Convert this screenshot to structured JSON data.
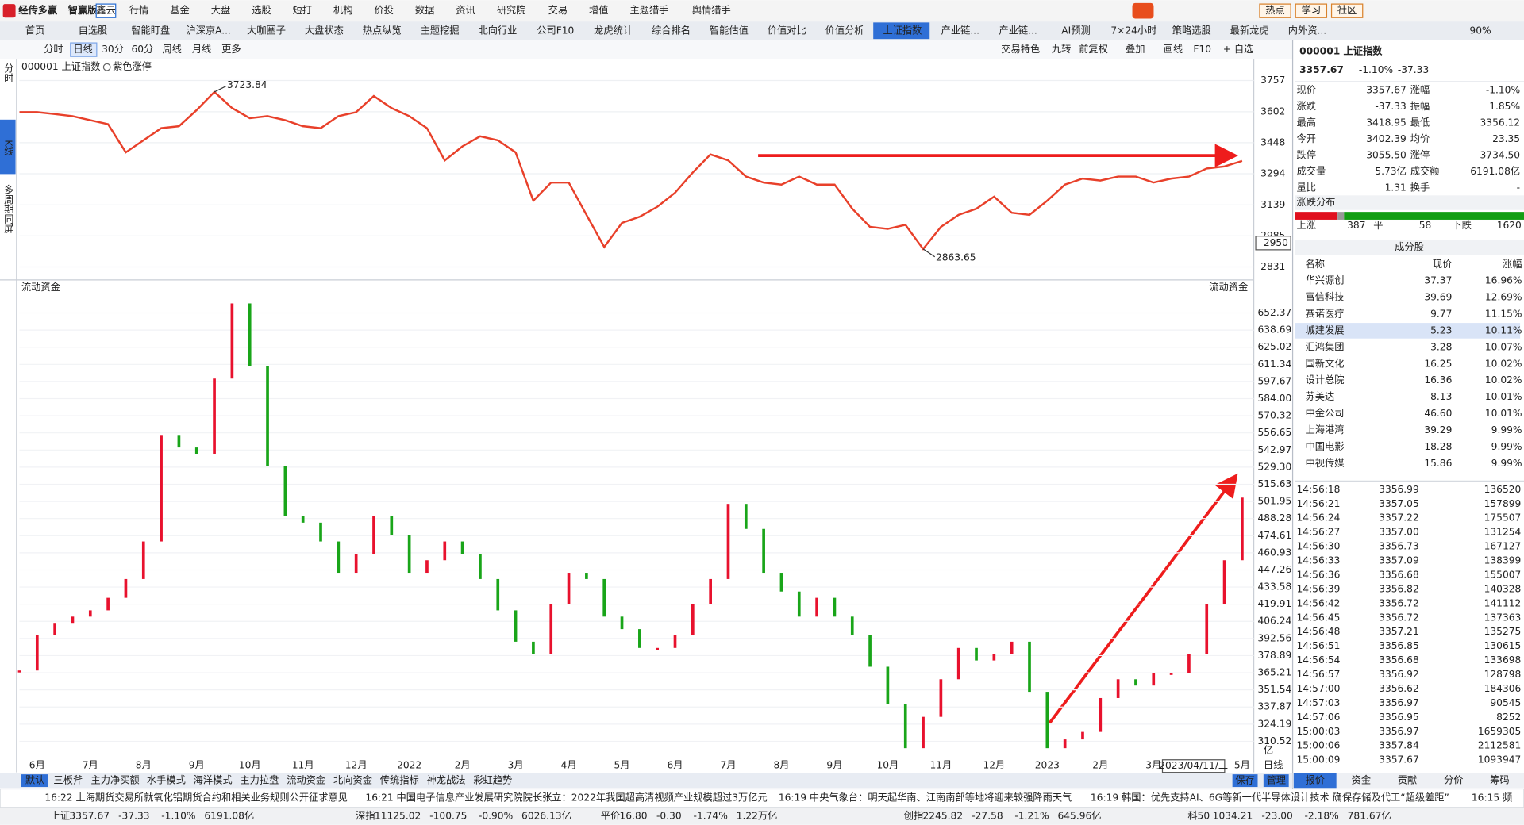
{
  "logo": "经传多赢",
  "edition": "智赢版",
  "badge": "鑫云",
  "menu": [
    "行情",
    "基金",
    "大盘",
    "选股",
    "短打",
    "机构",
    "价投",
    "数据",
    "资讯",
    "研究院",
    "交易",
    "增值",
    "主题猎手",
    "舆情猎手"
  ],
  "top_right": [
    "热点",
    "学习",
    "社区"
  ],
  "tabs": [
    "首页",
    "自选股",
    "智能盯盘",
    "沪深京A...",
    "大咖圈子",
    "大盘状态",
    "热点纵览",
    "主题挖掘",
    "北向行业",
    "公司F10",
    "龙虎统计",
    "综合排名",
    "智能估值",
    "价值对比",
    "价值分析",
    "上证指数",
    "产业链...",
    "产业链...",
    "AI预测",
    "7×24小时",
    "策略选股",
    "最新龙虎",
    "内外资..."
  ],
  "zoom": "90%",
  "toolbar_left": [
    "分时",
    "日线",
    "30分",
    "60分",
    "周线",
    "月线",
    "更多"
  ],
  "toolbar_right": [
    "交易特色",
    "九转",
    "前复权",
    "叠加",
    "画线",
    "F10",
    "+ 自选"
  ],
  "sidebar": [
    "分时",
    "K线",
    "多周期同屏"
  ],
  "chart_data": [
    {
      "type": "line",
      "title": "000001 上证指数",
      "subtitle": "紫色涨停",
      "color": "#e8402a",
      "categories": [
        null,
        "6月",
        null,
        null,
        "7月",
        null,
        null,
        "8月",
        null,
        null,
        "9月",
        null,
        null,
        "10月",
        null,
        null,
        "11月",
        null,
        null,
        "12月",
        null,
        null,
        "2022",
        null,
        null,
        "2月",
        null,
        null,
        "3月",
        null,
        null,
        "4月",
        null,
        null,
        "5月",
        null,
        null,
        "6月",
        null,
        null,
        "7月",
        null,
        null,
        "8月",
        null,
        null,
        "9月",
        null,
        null,
        "10月",
        null,
        null,
        "11月",
        null,
        null,
        "12月",
        null,
        null,
        "2023",
        null,
        null,
        "2月",
        null,
        null,
        "3月",
        null,
        null,
        null,
        null,
        "5月"
      ],
      "series": [
        {
          "color": "#e8402a",
          "values": [
            3600,
            3600,
            3590,
            3580,
            3560,
            3540,
            3400,
            3460,
            3520,
            3530,
            3610,
            3700,
            3620,
            3570,
            3580,
            3560,
            3530,
            3520,
            3580,
            3600,
            3680,
            3620,
            3580,
            3520,
            3360,
            3430,
            3480,
            3460,
            3400,
            3160,
            3250,
            3250,
            3090,
            2930,
            3050,
            3080,
            3130,
            3200,
            3300,
            3390,
            3360,
            3280,
            3250,
            3240,
            3280,
            3240,
            3240,
            3120,
            3030,
            3020,
            3040,
            2920,
            3030,
            3090,
            3120,
            3180,
            3100,
            3090,
            3160,
            3240,
            3270,
            3260,
            3280,
            3280,
            3250,
            3270,
            3280,
            3320,
            3330,
            3357.67
          ]
        }
      ],
      "annotations": [
        "3723.84",
        "2863.65"
      ],
      "cursor_value": 2950,
      "cursor_date": "2023/04/11/二",
      "period_label": "日线",
      "ylim": [
        2781,
        3857
      ],
      "yticks": [
        3757,
        3602,
        3448,
        3294,
        3139,
        2985,
        2831
      ]
    },
    {
      "type": "step",
      "title": "流动资金",
      "unit": "亿",
      "up_color": "#e8112d",
      "down_color": "#19a519",
      "series": [
        {
          "values": [
            367,
            395,
            405,
            410,
            415,
            425,
            440,
            470,
            555,
            545,
            540,
            600,
            660,
            610,
            530,
            490,
            485,
            470,
            445,
            460,
            490,
            475,
            445,
            455,
            470,
            460,
            440,
            415,
            390,
            380,
            420,
            445,
            440,
            410,
            400,
            385,
            385,
            395,
            420,
            440,
            500,
            480,
            445,
            430,
            410,
            425,
            410,
            395,
            370,
            340,
            305,
            330,
            360,
            385,
            375,
            380,
            390,
            350,
            305,
            312,
            318,
            345,
            360,
            355,
            365,
            365,
            380,
            420,
            455,
            505
          ]
        }
      ],
      "ylim": [
        297.3,
        677.2
      ],
      "yticks": [
        {
          "value": 652.37,
          "label": "652.37"
        },
        {
          "value": 638.69,
          "label": "638.69"
        },
        {
          "value": 625.02,
          "label": "625.02"
        },
        {
          "value": 611.34,
          "label": "611.34"
        },
        {
          "value": 597.67,
          "label": "597.67"
        },
        {
          "value": 584,
          "label": "584.00"
        },
        {
          "value": 570.32,
          "label": "570.32"
        },
        {
          "value": 556.65,
          "label": "556.65"
        },
        {
          "value": 542.97,
          "label": "542.97"
        },
        {
          "value": 529.3,
          "label": "529.30"
        },
        {
          "value": 515.63,
          "label": "515.63"
        },
        {
          "value": 501.95,
          "label": "501.95"
        },
        {
          "value": 488.28,
          "label": "488.28"
        },
        {
          "value": 474.61,
          "label": "474.61"
        },
        {
          "value": 460.93,
          "label": "460.93"
        },
        {
          "value": 447.26,
          "label": "447.26"
        },
        {
          "value": 433.58,
          "label": "433.58"
        },
        {
          "value": 419.91,
          "label": "419.91"
        },
        {
          "value": 406.24,
          "label": "406.24"
        },
        {
          "value": 392.56,
          "label": "392.56"
        },
        {
          "value": 378.89,
          "label": "378.89"
        },
        {
          "value": 365.21,
          "label": "365.21"
        },
        {
          "value": 351.54,
          "label": "351.54"
        },
        {
          "value": 337.87,
          "label": "337.87"
        },
        {
          "value": 324.19,
          "label": "324.19"
        },
        {
          "value": 310.52,
          "label": "310.52"
        }
      ]
    }
  ],
  "indicator_tabs": [
    "默认",
    "三板斧",
    "主力净买额",
    "水手模式",
    "海洋模式",
    "主力拉盘",
    "流动资金",
    "北向资金",
    "传统指标",
    "神龙战法",
    "彩虹趋势"
  ],
  "indicator_actions": [
    "保存",
    "管理"
  ],
  "news": [
    "16:22 上海期货交易所就氧化铝期货合约和相关业务规则公开征求意见",
    "16:21 中国电子信息产业发展研究院院长张立：2022年我国超高清视频产业规模超过3万亿元",
    "16:19 中央气象台：明天起华南、江南南部等地将迎来较强降雨天气",
    "16:19 韩国：优先支持AI、6G等新一代半导体设计技术 确保存储及代工“超级差距”",
    "16:15 频"
  ],
  "status": [
    [
      "上证",
      "3357.67",
      "-37.33",
      "-1.10%",
      "6191.08亿"
    ],
    [
      "深指",
      "11125.02",
      "-100.75",
      "-0.90%",
      "6026.13亿"
    ],
    [
      "平价",
      "16.80",
      "-0.30",
      "-1.74%",
      "1.22万亿"
    ],
    [
      "创指",
      "2245.82",
      "-27.58",
      "-1.21%",
      "645.96亿"
    ],
    [
      "科50",
      "1034.21",
      "-23.00",
      "-2.18%",
      "781.67亿"
    ]
  ],
  "panel": {
    "name": "000001 上证指数",
    "price": "3357.67",
    "change_pct": "-1.10%",
    "change": "-37.33",
    "quote": [
      [
        {
          "label": "现价",
          "value": "3357.67",
          "tone": "down"
        },
        {
          "label": "涨幅",
          "value": "-1.10%",
          "tone": "down"
        }
      ],
      [
        {
          "label": "涨跌",
          "value": "-37.33",
          "tone": "down"
        },
        {
          "label": "振幅",
          "value": "1.85%",
          "tone": "flat"
        }
      ],
      [
        {
          "label": "最高",
          "value": "3418.95",
          "tone": "up"
        },
        {
          "label": "最低",
          "value": "3356.12",
          "tone": "down"
        }
      ],
      [
        {
          "label": "今开",
          "value": "3402.39",
          "tone": "up"
        },
        {
          "label": "均价",
          "value": "23.35",
          "tone": "down"
        }
      ],
      [
        {
          "label": "跌停",
          "value": "3055.50",
          "tone": "down"
        },
        {
          "label": "涨停",
          "value": "3734.50",
          "tone": "up"
        }
      ],
      [
        {
          "label": "成交量",
          "value": "5.73亿",
          "tone": "flat"
        },
        {
          "label": "成交额",
          "value": "6191.08亿",
          "tone": "flat"
        }
      ],
      [
        {
          "label": "量比",
          "value": "1.31",
          "tone": "flat"
        },
        {
          "label": "换手",
          "value": "-",
          "tone": "flat"
        }
      ]
    ],
    "distribution": {
      "title": "涨跌分布",
      "up_label": "上涨",
      "up": 387,
      "flat_label": "平",
      "flat": 58,
      "down_label": "下跌",
      "down": 1620
    },
    "constituents": {
      "title": "成分股",
      "header": [
        "名称",
        "现价",
        "涨幅"
      ],
      "rows": [
        [
          "华兴源创",
          "37.37",
          "16.96%"
        ],
        [
          "富信科技",
          "39.69",
          "12.69%"
        ],
        [
          "赛诺医疗",
          "9.77",
          "11.15%"
        ],
        [
          "城建发展",
          "5.23",
          "10.11%"
        ],
        [
          "汇鸿集团",
          "3.28",
          "10.07%"
        ],
        [
          "国新文化",
          "16.25",
          "10.02%"
        ],
        [
          "设计总院",
          "16.36",
          "10.02%"
        ],
        [
          "苏美达",
          "8.13",
          "10.01%"
        ],
        [
          "中金公司",
          "46.60",
          "10.01%"
        ],
        [
          "上海港湾",
          "39.29",
          "9.99%"
        ],
        [
          "中国电影",
          "18.28",
          "9.99%"
        ],
        [
          "中视传媒",
          "15.86",
          "9.99%"
        ]
      ]
    },
    "ticks": [
      [
        "14:56:18",
        "3356.99",
        "136520"
      ],
      [
        "14:56:21",
        "3357.05",
        "157899"
      ],
      [
        "14:56:24",
        "3357.22",
        "175507"
      ],
      [
        "14:56:27",
        "3357.00",
        "131254"
      ],
      [
        "14:56:30",
        "3356.73",
        "167127"
      ],
      [
        "14:56:33",
        "3357.09",
        "138399"
      ],
      [
        "14:56:36",
        "3356.68",
        "155007"
      ],
      [
        "14:56:39",
        "3356.82",
        "140328"
      ],
      [
        "14:56:42",
        "3356.72",
        "141112"
      ],
      [
        "14:56:45",
        "3356.72",
        "137363"
      ],
      [
        "14:56:48",
        "3357.21",
        "135275"
      ],
      [
        "14:56:51",
        "3356.85",
        "130615"
      ],
      [
        "14:56:54",
        "3356.68",
        "133698"
      ],
      [
        "14:56:57",
        "3356.92",
        "128798"
      ],
      [
        "14:57:00",
        "3356.62",
        "184306"
      ],
      [
        "14:57:03",
        "3356.97",
        "90545"
      ],
      [
        "14:57:06",
        "3356.95",
        "8252"
      ],
      [
        "15:00:03",
        "3356.97",
        "1659305"
      ],
      [
        "15:00:06",
        "3357.84",
        "2112581"
      ],
      [
        "15:00:09",
        "3357.67",
        "1093947"
      ]
    ],
    "tabs": [
      "报价",
      "资金",
      "贡献",
      "分价",
      "筹码"
    ]
  }
}
